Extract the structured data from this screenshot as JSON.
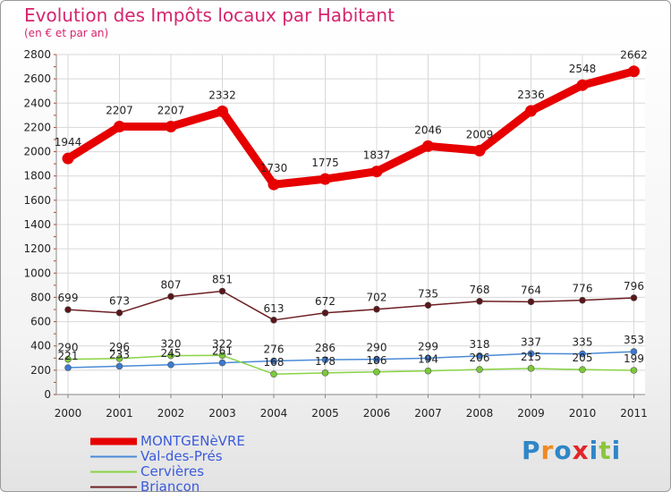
{
  "title": "Evolution des Impôts locaux par Habitant",
  "subtitle": "(en € et par an)",
  "logo_text": "Proxiti",
  "chart_data": {
    "type": "line",
    "title": "Evolution des Impôts locaux par Habitant",
    "ylabel": "(en € et par an)",
    "xlabel": "",
    "ylim": [
      0,
      2800
    ],
    "yticks": [
      "0",
      "200",
      "400",
      "600",
      "800",
      "1000",
      "1200",
      "1400",
      "1600",
      "1800",
      "2000",
      "2200",
      "2400",
      "2600",
      "2800"
    ],
    "categories": [
      "2000",
      "2001",
      "2002",
      "2003",
      "2004",
      "2005",
      "2006",
      "2007",
      "2008",
      "2009",
      "2010",
      "2011"
    ],
    "legend_position": "bottom-left",
    "series": [
      {
        "name": "MONTGENèVRE",
        "color": "#e60000",
        "values": [
          1944,
          2207,
          2207,
          2332,
          1730,
          1775,
          1837,
          2046,
          2009,
          2336,
          2548,
          2662
        ],
        "labels": [
          "1944",
          "2207",
          "2207",
          "2332",
          "1730",
          "1775",
          "1837",
          "2046",
          "2009",
          "2336",
          "2548",
          "2662"
        ]
      },
      {
        "name": "Val-des-Prés",
        "color": "#4a8ad6",
        "values": [
          221,
          233,
          245,
          261,
          276,
          286,
          290,
          299,
          318,
          337,
          335,
          353
        ],
        "labels": [
          "221",
          "233",
          "245",
          "261",
          "276",
          "286",
          "290",
          "299",
          "318",
          "337",
          "335",
          "353"
        ]
      },
      {
        "name": "Cervières",
        "color": "#88d444",
        "values": [
          290,
          296,
          320,
          322,
          168,
          178,
          186,
          194,
          206,
          215,
          205,
          199
        ],
        "labels": [
          "290",
          "296",
          "320",
          "322",
          "168",
          "178",
          "186",
          "194",
          "206",
          "215",
          "205",
          "199"
        ]
      },
      {
        "name": "Briançon",
        "color": "#6e1f24",
        "values": [
          699,
          673,
          807,
          851,
          613,
          672,
          702,
          735,
          768,
          764,
          776,
          796
        ],
        "labels": [
          "699",
          "673",
          "807",
          "851",
          "613",
          "672",
          "702",
          "735",
          "768",
          "764",
          "776",
          "796"
        ]
      }
    ]
  }
}
